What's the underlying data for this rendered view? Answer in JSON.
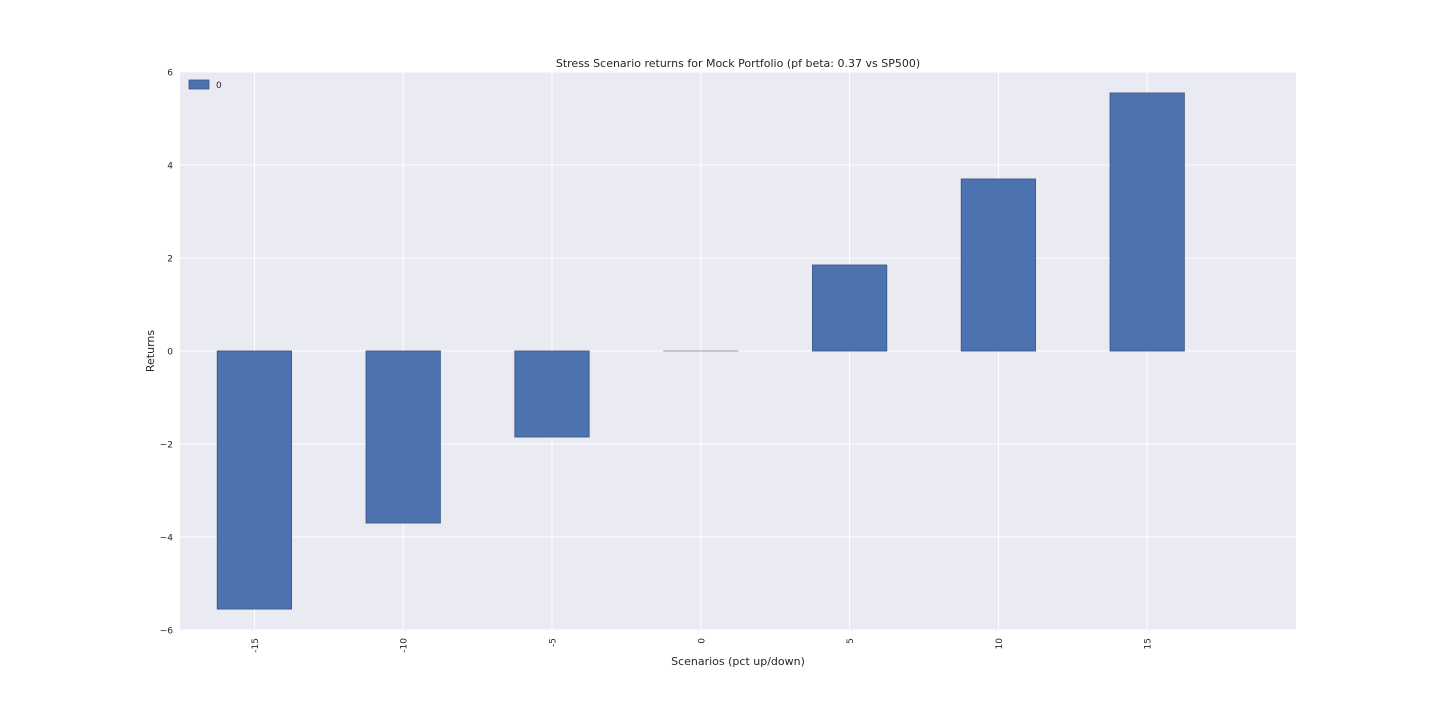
{
  "chart_data": {
    "type": "bar",
    "title": "Stress Scenario returns for Mock Portfolio (pf beta: 0.37 vs SP500)",
    "xlabel": "Scenarios (pct up/down)",
    "ylabel": "Returns",
    "categories": [
      "-15",
      "-10",
      "-5",
      "0",
      "5",
      "10",
      "15"
    ],
    "series": [
      {
        "name": "0",
        "values": [
          -5.55,
          -3.7,
          -1.85,
          0.0,
          1.85,
          3.7,
          5.55
        ]
      }
    ],
    "ylim": [
      -6,
      6
    ],
    "yticks": [
      "6",
      "4",
      "2",
      "0",
      "−2",
      "−4",
      "−6"
    ],
    "grid": true,
    "legend_position": "top-left",
    "colors": {
      "bar": "#4c72b0",
      "bar_edge": "#3a5685",
      "axes_bg": "#eaeaf2",
      "grid": "#ffffff"
    }
  }
}
